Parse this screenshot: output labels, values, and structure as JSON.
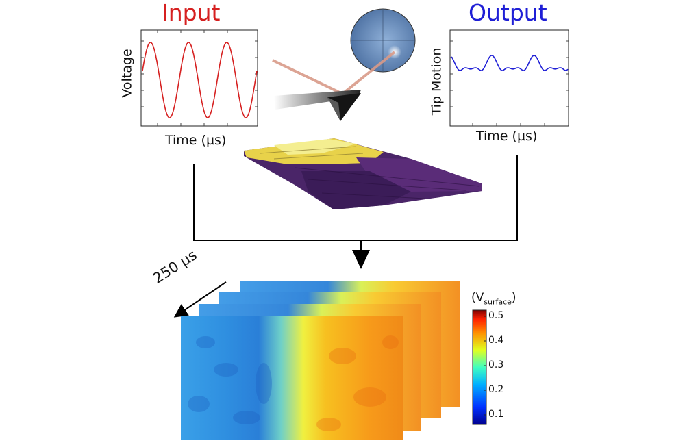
{
  "input": {
    "title": "Input",
    "ylabel": "Voltage",
    "xlabel": "Time (µs)"
  },
  "output": {
    "title": "Output",
    "ylabel": "Tip Motion",
    "xlabel": "Time (µs)"
  },
  "stack": {
    "time_label": "250 µs"
  },
  "colorbar": {
    "title_main": "(V",
    "title_sub": "surface",
    "title_end": ")",
    "ticks": [
      "0.5",
      "0.4",
      "0.3",
      "0.2",
      "0.1"
    ]
  },
  "colors": {
    "input": "#d62020",
    "output": "#1f1fd6"
  }
}
